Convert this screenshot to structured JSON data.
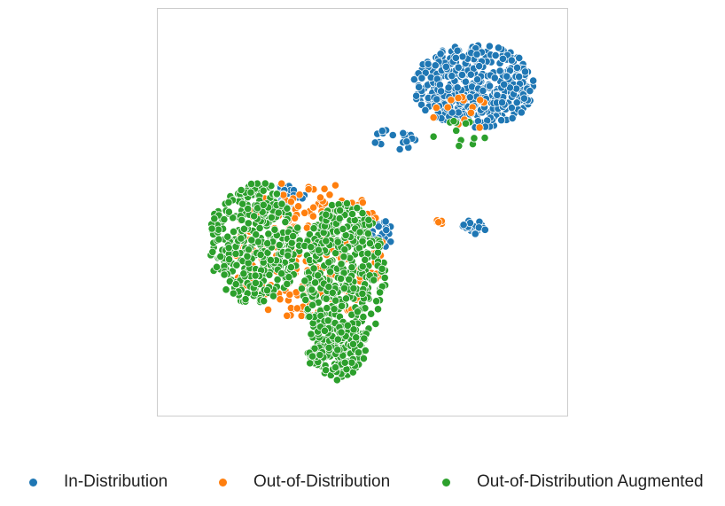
{
  "chart_data": {
    "type": "scatter",
    "title": "",
    "xlabel": "",
    "ylabel": "",
    "grid": false,
    "legend_position": "bottom",
    "xlim": [
      0,
      100
    ],
    "ylim": [
      0,
      100
    ],
    "series": [
      {
        "name": "In-Distribution",
        "color": "#1f77b4",
        "clusters": [
          {
            "cx": 79,
            "cy": 83,
            "rx": 16,
            "ry": 11,
            "n": 420
          },
          {
            "cx": 30,
            "cy": 54,
            "rx": 5,
            "ry": 3,
            "n": 30
          },
          {
            "cx": 59,
            "cy": 69,
            "rx": 6,
            "ry": 3,
            "n": 18
          },
          {
            "cx": 79,
            "cy": 46,
            "rx": 3,
            "ry": 2,
            "n": 22
          },
          {
            "cx": 55,
            "cy": 44,
            "rx": 3,
            "ry": 4,
            "n": 18
          }
        ]
      },
      {
        "name": "Out-of-Distribution",
        "color": "#ff7f0e",
        "clusters": [
          {
            "cx": 36,
            "cy": 40,
            "rx": 20,
            "ry": 19,
            "n": 240
          },
          {
            "cx": 75,
            "cy": 76,
            "rx": 10,
            "ry": 6,
            "n": 14
          },
          {
            "cx": 71,
            "cy": 47,
            "rx": 4,
            "ry": 1,
            "n": 5
          }
        ]
      },
      {
        "name": "Out-of-Distribution Augmented",
        "color": "#2ca02c",
        "clusters": [
          {
            "cx": 22,
            "cy": 42,
            "rx": 12,
            "ry": 16,
            "n": 360
          },
          {
            "cx": 45,
            "cy": 33,
            "rx": 11,
            "ry": 20,
            "n": 420
          },
          {
            "cx": 43,
            "cy": 14,
            "rx": 8,
            "ry": 8,
            "n": 160
          },
          {
            "cx": 75,
            "cy": 72,
            "rx": 8,
            "ry": 5,
            "n": 12
          }
        ]
      }
    ]
  },
  "legend": {
    "items": [
      {
        "label": "In-Distribution",
        "color": "#1f77b4"
      },
      {
        "label": "Out-of-Distribution",
        "color": "#ff7f0e"
      },
      {
        "label": "Out-of-Distribution Augmented",
        "color": "#2ca02c"
      }
    ]
  }
}
